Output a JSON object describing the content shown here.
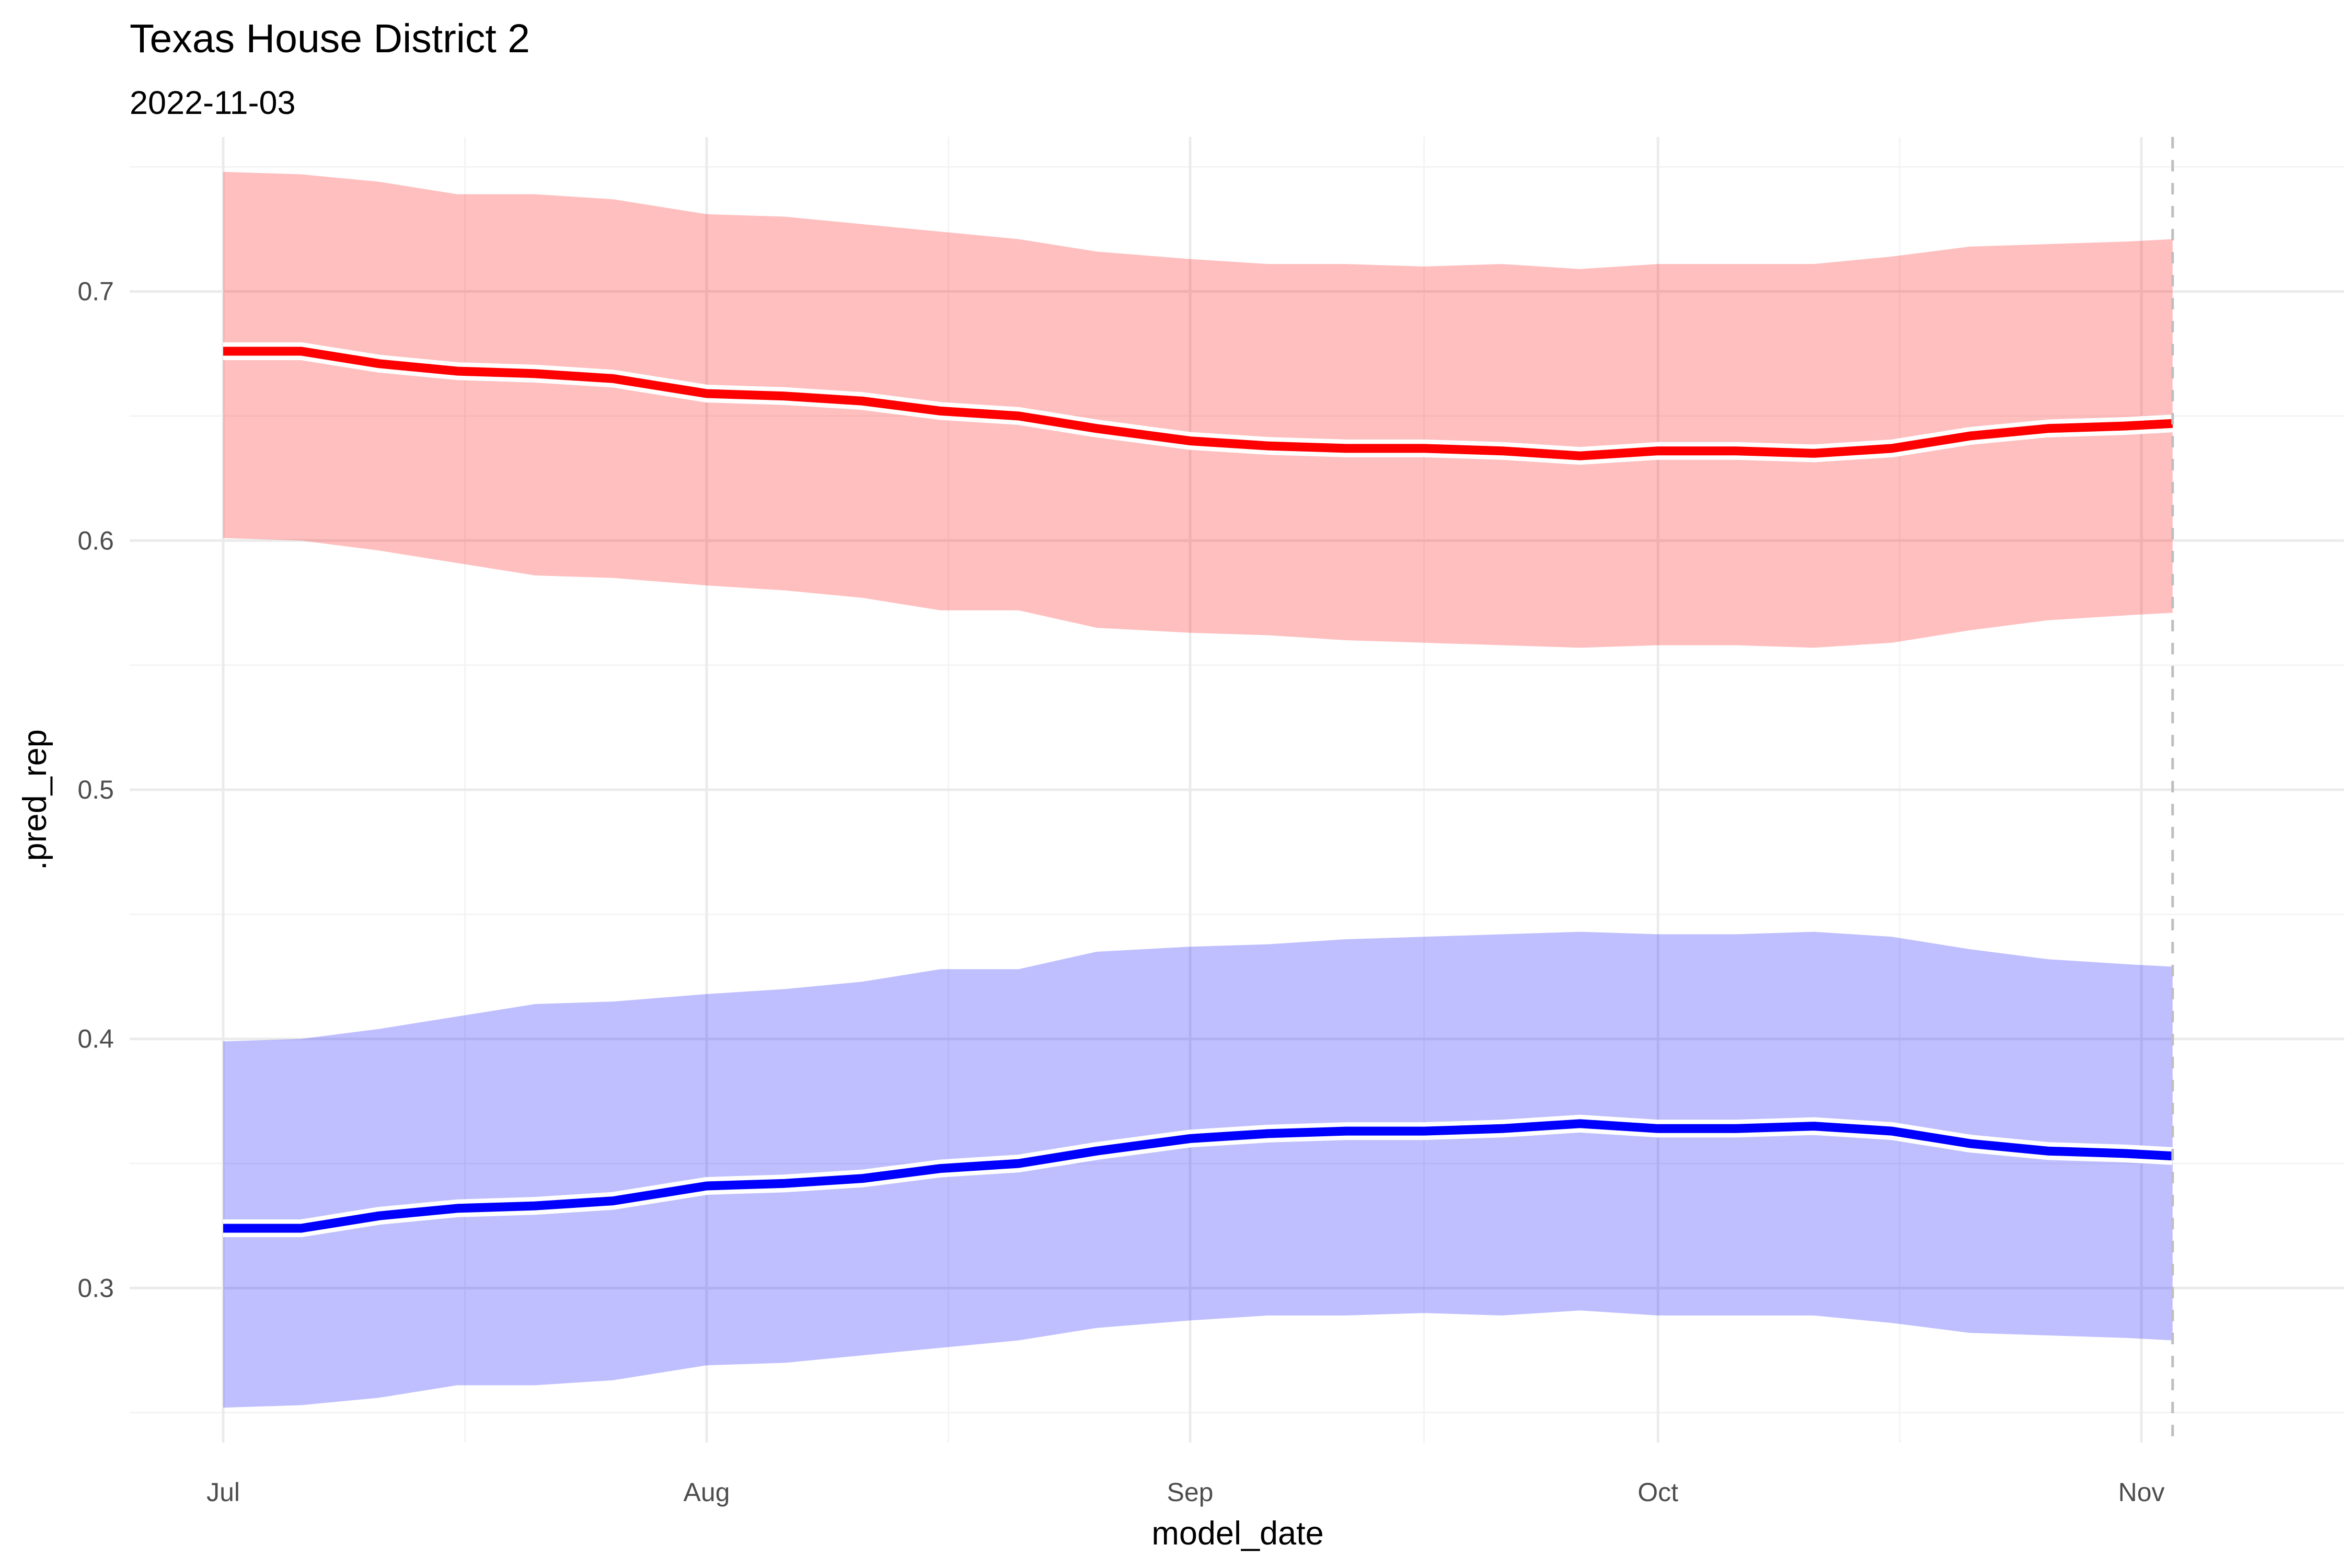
{
  "chart_data": {
    "type": "line",
    "title": "Texas House District 2",
    "subtitle": "2022-11-03",
    "xlabel": "model_date",
    "ylabel": ".pred_rep",
    "x_ticks": [
      {
        "date": "2022-07-01",
        "label": "Jul"
      },
      {
        "date": "2022-08-01",
        "label": "Aug"
      },
      {
        "date": "2022-09-01",
        "label": "Sep"
      },
      {
        "date": "2022-10-01",
        "label": "Oct"
      },
      {
        "date": "2022-11-01",
        "label": "Nov"
      }
    ],
    "y_ticks": [
      0.3,
      0.4,
      0.5,
      0.6,
      0.7
    ],
    "xlim": [
      "2022-06-25",
      "2022-11-14"
    ],
    "ylim": [
      0.238,
      0.762
    ],
    "grid": true,
    "reference_line": {
      "date": "2022-11-03",
      "style": "dashed",
      "color": "#bebebe"
    },
    "series": [
      {
        "color": "#ff0000",
        "ribbon_color": "#ff0000",
        "ribbon_opacity": 0.25,
        "points": [
          {
            "x": "2022-07-01",
            "y": 0.676,
            "lower": 0.601,
            "upper": 0.748
          },
          {
            "x": "2022-07-06",
            "y": 0.676,
            "lower": 0.6,
            "upper": 0.747
          },
          {
            "x": "2022-07-11",
            "y": 0.671,
            "lower": 0.596,
            "upper": 0.744
          },
          {
            "x": "2022-07-16",
            "y": 0.668,
            "lower": 0.591,
            "upper": 0.739
          },
          {
            "x": "2022-07-21",
            "y": 0.667,
            "lower": 0.586,
            "upper": 0.739
          },
          {
            "x": "2022-07-26",
            "y": 0.665,
            "lower": 0.585,
            "upper": 0.737
          },
          {
            "x": "2022-08-01",
            "y": 0.659,
            "lower": 0.582,
            "upper": 0.731
          },
          {
            "x": "2022-08-06",
            "y": 0.658,
            "lower": 0.58,
            "upper": 0.73
          },
          {
            "x": "2022-08-11",
            "y": 0.656,
            "lower": 0.577,
            "upper": 0.727
          },
          {
            "x": "2022-08-16",
            "y": 0.652,
            "lower": 0.572,
            "upper": 0.724
          },
          {
            "x": "2022-08-21",
            "y": 0.65,
            "lower": 0.572,
            "upper": 0.721
          },
          {
            "x": "2022-08-26",
            "y": 0.645,
            "lower": 0.565,
            "upper": 0.716
          },
          {
            "x": "2022-09-01",
            "y": 0.64,
            "lower": 0.563,
            "upper": 0.713
          },
          {
            "x": "2022-09-06",
            "y": 0.638,
            "lower": 0.562,
            "upper": 0.711
          },
          {
            "x": "2022-09-11",
            "y": 0.637,
            "lower": 0.56,
            "upper": 0.711
          },
          {
            "x": "2022-09-16",
            "y": 0.637,
            "lower": 0.559,
            "upper": 0.71
          },
          {
            "x": "2022-09-21",
            "y": 0.636,
            "lower": 0.558,
            "upper": 0.711
          },
          {
            "x": "2022-09-26",
            "y": 0.634,
            "lower": 0.557,
            "upper": 0.709
          },
          {
            "x": "2022-10-01",
            "y": 0.636,
            "lower": 0.558,
            "upper": 0.711
          },
          {
            "x": "2022-10-06",
            "y": 0.636,
            "lower": 0.558,
            "upper": 0.711
          },
          {
            "x": "2022-10-11",
            "y": 0.635,
            "lower": 0.557,
            "upper": 0.711
          },
          {
            "x": "2022-10-16",
            "y": 0.637,
            "lower": 0.559,
            "upper": 0.714
          },
          {
            "x": "2022-10-21",
            "y": 0.642,
            "lower": 0.564,
            "upper": 0.718
          },
          {
            "x": "2022-10-26",
            "y": 0.645,
            "lower": 0.568,
            "upper": 0.719
          },
          {
            "x": "2022-10-31",
            "y": 0.646,
            "lower": 0.57,
            "upper": 0.72
          },
          {
            "x": "2022-11-03",
            "y": 0.647,
            "lower": 0.571,
            "upper": 0.721
          }
        ]
      },
      {
        "color": "#0000ff",
        "ribbon_color": "#0000ff",
        "ribbon_opacity": 0.25,
        "points": [
          {
            "x": "2022-07-01",
            "y": 0.324,
            "lower": 0.252,
            "upper": 0.399
          },
          {
            "x": "2022-07-06",
            "y": 0.324,
            "lower": 0.253,
            "upper": 0.4
          },
          {
            "x": "2022-07-11",
            "y": 0.329,
            "lower": 0.256,
            "upper": 0.404
          },
          {
            "x": "2022-07-16",
            "y": 0.332,
            "lower": 0.261,
            "upper": 0.409
          },
          {
            "x": "2022-07-21",
            "y": 0.333,
            "lower": 0.261,
            "upper": 0.414
          },
          {
            "x": "2022-07-26",
            "y": 0.335,
            "lower": 0.263,
            "upper": 0.415
          },
          {
            "x": "2022-08-01",
            "y": 0.341,
            "lower": 0.269,
            "upper": 0.418
          },
          {
            "x": "2022-08-06",
            "y": 0.342,
            "lower": 0.27,
            "upper": 0.42
          },
          {
            "x": "2022-08-11",
            "y": 0.344,
            "lower": 0.273,
            "upper": 0.423
          },
          {
            "x": "2022-08-16",
            "y": 0.348,
            "lower": 0.276,
            "upper": 0.428
          },
          {
            "x": "2022-08-21",
            "y": 0.35,
            "lower": 0.279,
            "upper": 0.428
          },
          {
            "x": "2022-08-26",
            "y": 0.355,
            "lower": 0.284,
            "upper": 0.435
          },
          {
            "x": "2022-09-01",
            "y": 0.36,
            "lower": 0.287,
            "upper": 0.437
          },
          {
            "x": "2022-09-06",
            "y": 0.362,
            "lower": 0.289,
            "upper": 0.438
          },
          {
            "x": "2022-09-11",
            "y": 0.363,
            "lower": 0.289,
            "upper": 0.44
          },
          {
            "x": "2022-09-16",
            "y": 0.363,
            "lower": 0.29,
            "upper": 0.441
          },
          {
            "x": "2022-09-21",
            "y": 0.364,
            "lower": 0.289,
            "upper": 0.442
          },
          {
            "x": "2022-09-26",
            "y": 0.366,
            "lower": 0.291,
            "upper": 0.443
          },
          {
            "x": "2022-10-01",
            "y": 0.364,
            "lower": 0.289,
            "upper": 0.442
          },
          {
            "x": "2022-10-06",
            "y": 0.364,
            "lower": 0.289,
            "upper": 0.442
          },
          {
            "x": "2022-10-11",
            "y": 0.365,
            "lower": 0.289,
            "upper": 0.443
          },
          {
            "x": "2022-10-16",
            "y": 0.363,
            "lower": 0.286,
            "upper": 0.441
          },
          {
            "x": "2022-10-21",
            "y": 0.358,
            "lower": 0.282,
            "upper": 0.436
          },
          {
            "x": "2022-10-26",
            "y": 0.355,
            "lower": 0.281,
            "upper": 0.432
          },
          {
            "x": "2022-10-31",
            "y": 0.354,
            "lower": 0.28,
            "upper": 0.43
          },
          {
            "x": "2022-11-03",
            "y": 0.353,
            "lower": 0.279,
            "upper": 0.429
          }
        ]
      }
    ]
  }
}
